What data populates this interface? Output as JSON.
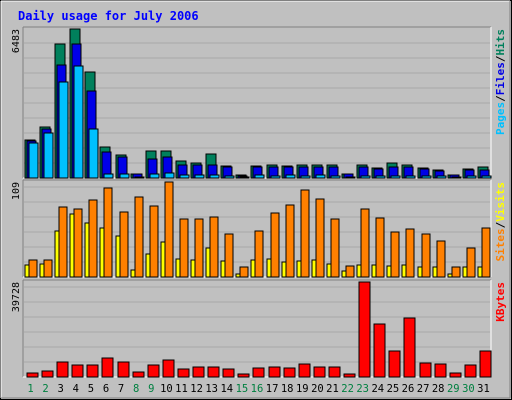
{
  "title": "Daily usage for July 2006",
  "colors": {
    "background": "#c0c0c0",
    "title": "#0000ff",
    "hits": "#00805c",
    "files": "#0000e6",
    "pages": "#00c0ff",
    "visits": "#ff8000",
    "sites": "#ffff00",
    "kbytes": "#ff0000",
    "weekend_label": "#008040",
    "weekday_label": "#000000"
  },
  "panels": {
    "top": {
      "max_label": "6483",
      "legend": [
        {
          "text": "Pages",
          "color": "#00c0ff"
        },
        {
          "text": "/",
          "color": "#000000"
        },
        {
          "text": "Files",
          "color": "#0000e6"
        },
        {
          "text": "/",
          "color": "#000000"
        },
        {
          "text": "Hits",
          "color": "#00805c"
        }
      ]
    },
    "middle": {
      "max_label": "109",
      "legend": [
        {
          "text": "Sites",
          "color": "#ff8000"
        },
        {
          "text": "/",
          "color": "#000000"
        },
        {
          "text": "Visits",
          "color": "#ffff00"
        }
      ]
    },
    "bottom": {
      "max_label": "39728",
      "legend": [
        {
          "text": "KBytes",
          "color": "#ff0000"
        }
      ]
    }
  },
  "chart_data": {
    "type": "bar",
    "title": "Daily usage for July 2006",
    "categories": [
      "1",
      "2",
      "3",
      "4",
      "5",
      "6",
      "7",
      "8",
      "9",
      "10",
      "11",
      "12",
      "13",
      "14",
      "15",
      "16",
      "17",
      "18",
      "19",
      "20",
      "21",
      "22",
      "23",
      "24",
      "25",
      "26",
      "27",
      "28",
      "29",
      "30",
      "31"
    ],
    "weekend_days": [
      "1",
      "2",
      "8",
      "9",
      "15",
      "16",
      "22",
      "23",
      "29",
      "30"
    ],
    "panels": [
      {
        "ylim": [
          0,
          6483
        ],
        "series": [
          {
            "name": "Hits",
            "values": [
              1640,
              2240,
              5840,
              6483,
              4620,
              1370,
              1000,
              190,
              1180,
              1190,
              750,
              640,
              1040,
              540,
              120,
              540,
              550,
              540,
              550,
              550,
              550,
              190,
              560,
              450,
              640,
              560,
              450,
              350,
              140,
              380,
              460
            ]
          },
          {
            "name": "Files",
            "values": [
              1620,
              2150,
              4920,
              5820,
              3800,
              1120,
              930,
              160,
              830,
              930,
              570,
              580,
              570,
              500,
              90,
              480,
              480,
              480,
              470,
              470,
              470,
              160,
              470,
              400,
              470,
              460,
              400,
              300,
              110,
              340,
              340
            ]
          },
          {
            "name": "Pages",
            "values": [
              1530,
              1960,
              4190,
              4870,
              2150,
              190,
              190,
              40,
              190,
              200,
              110,
              120,
              110,
              100,
              20,
              110,
              100,
              110,
              100,
              110,
              100,
              40,
              100,
              90,
              100,
              100,
              90,
              70,
              20,
              80,
              70
            ]
          }
        ]
      },
      {
        "ylim": [
          0,
          109
        ],
        "series": [
          {
            "name": "Visits",
            "values": [
              14,
              15,
              53,
              72,
              62,
              56,
              47,
              8,
              26,
              40,
              21,
              20,
              33,
              18,
              4,
              20,
              21,
              17,
              18,
              20,
              15,
              7,
              14,
              14,
              13,
              14,
              12,
              11,
              4,
              11,
              12
            ]
          },
          {
            "name": "Sites",
            "values": [
              19,
              19,
              80,
              78,
              88,
              102,
              75,
              92,
              82,
              109,
              67,
              66,
              69,
              49,
              11,
              53,
              73,
              83,
              100,
              90,
              66,
              13,
              78,
              68,
              52,
              55,
              49,
              41,
              11,
              33,
              56
            ]
          }
        ]
      },
      {
        "ylim": [
          0,
          39728
        ],
        "series": [
          {
            "name": "KBytes",
            "values": [
              1500,
              2500,
              6200,
              5100,
              5100,
              8000,
              6100,
              2200,
              5100,
              7100,
              3500,
              4000,
              4100,
              3300,
              1200,
              3900,
              4200,
              3900,
              5400,
              4000,
              4000,
              1300,
              39728,
              22000,
              11000,
              24500,
              5700,
              5600,
              1500,
              5000,
              10900
            ]
          }
        ]
      }
    ]
  }
}
